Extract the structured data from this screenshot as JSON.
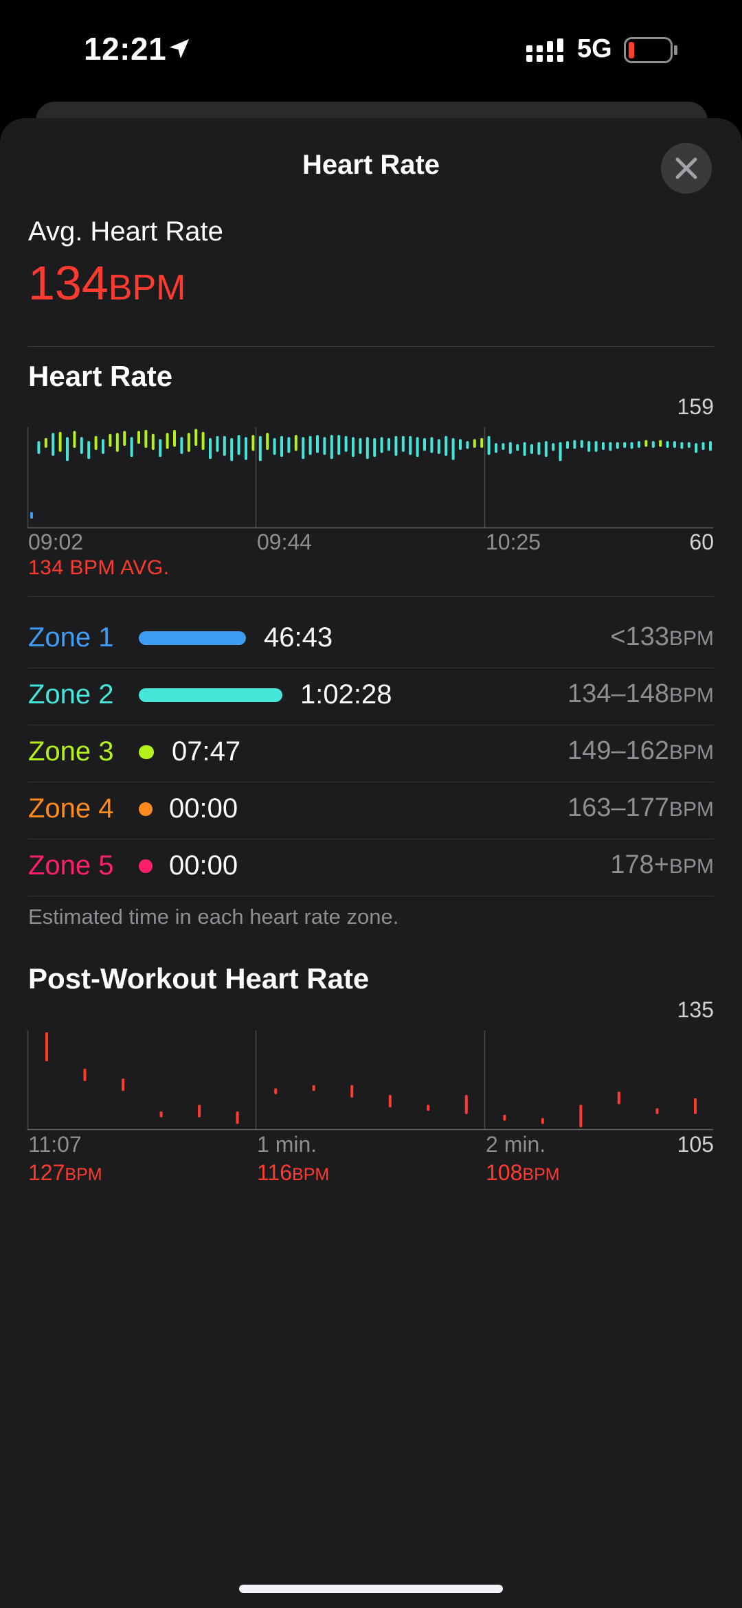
{
  "status": {
    "time": "12:21",
    "network": "5G",
    "icons": [
      "location-arrow-icon",
      "signal-bars-icon",
      "battery-low-icon"
    ],
    "battery_color": "#ff3b30"
  },
  "sheet": {
    "title": "Heart Rate",
    "close_icon": "close-icon"
  },
  "summary": {
    "label": "Avg. Heart Rate",
    "value": "134",
    "unit": "BPM",
    "color": "#ff3b30"
  },
  "heart_rate": {
    "title": "Heart Rate",
    "y_max_label": "159",
    "y_min_label": "60",
    "x_labels": [
      "09:02",
      "09:44",
      "10:25"
    ],
    "avg_caption": "134 BPM AVG."
  },
  "zones": [
    {
      "name": "Zone 1",
      "time": "46:43",
      "range": "<133",
      "unit": "BPM",
      "color": "#3f9cf4",
      "bar_fraction": 0.65
    },
    {
      "name": "Zone 2",
      "time": "1:02:28",
      "range": "134–148",
      "unit": "BPM",
      "color": "#45e5da",
      "bar_fraction": 0.87
    },
    {
      "name": "Zone 3",
      "time": "07:47",
      "range": "149–162",
      "unit": "BPM",
      "color": "#b4f11a",
      "bar_fraction": 0.09
    },
    {
      "name": "Zone 4",
      "time": "00:00",
      "range": "163–177",
      "unit": "BPM",
      "color": "#ff8a1e",
      "bar_fraction": 0
    },
    {
      "name": "Zone 5",
      "time": "00:00",
      "range": "178+",
      "unit": "BPM",
      "color": "#ff1f6b",
      "bar_fraction": 0
    }
  ],
  "zones_footnote": "Estimated time in each heart rate zone.",
  "post_workout": {
    "title": "Post-Workout Heart Rate",
    "y_max_label": "135",
    "y_min_label": "105",
    "columns": [
      {
        "label": "11:07",
        "bpm": "127",
        "unit": "BPM"
      },
      {
        "label": "1 min.",
        "bpm": "116",
        "unit": "BPM"
      },
      {
        "label": "2 min.",
        "bpm": "108",
        "unit": "BPM"
      }
    ]
  },
  "chart_data": [
    {
      "type": "bar",
      "title": "Heart Rate",
      "ylim": [
        60,
        159
      ],
      "x_tick_labels": [
        "09:02",
        "09:44",
        "10:25"
      ],
      "average": 134,
      "values": [
        [
          70,
          74
        ],
        [
          134,
          144
        ],
        [
          140,
          147
        ],
        [
          132,
          152
        ],
        [
          136,
          153
        ],
        [
          127,
          148
        ],
        [
          140,
          154
        ],
        [
          134,
          148
        ],
        [
          129,
          144
        ],
        [
          138,
          149
        ],
        [
          134,
          146
        ],
        [
          141,
          151
        ],
        [
          136,
          152
        ],
        [
          142,
          154
        ],
        [
          131,
          148
        ],
        [
          144,
          154
        ],
        [
          140,
          155
        ],
        [
          138,
          151
        ],
        [
          131,
          146
        ],
        [
          139,
          152
        ],
        [
          141,
          155
        ],
        [
          134,
          148
        ],
        [
          136,
          152
        ],
        [
          142,
          156
        ],
        [
          138,
          153
        ],
        [
          129,
          147
        ],
        [
          136,
          149
        ],
        [
          132,
          149
        ],
        [
          127,
          147
        ],
        [
          133,
          150
        ],
        [
          128,
          148
        ],
        [
          137,
          150
        ],
        [
          127,
          149
        ],
        [
          138,
          152
        ],
        [
          133,
          147
        ],
        [
          131,
          149
        ],
        [
          135,
          148
        ],
        [
          137,
          150
        ],
        [
          129,
          148
        ],
        [
          133,
          149
        ],
        [
          135,
          150
        ],
        [
          133,
          148
        ],
        [
          129,
          150
        ],
        [
          133,
          150
        ],
        [
          136,
          149
        ],
        [
          131,
          148
        ],
        [
          134,
          147
        ],
        [
          129,
          148
        ],
        [
          131,
          147
        ],
        [
          135,
          148
        ],
        [
          137,
          147
        ],
        [
          132,
          149
        ],
        [
          136,
          149
        ],
        [
          133,
          149
        ],
        [
          131,
          148
        ],
        [
          137,
          147
        ],
        [
          135,
          148
        ],
        [
          134,
          146
        ],
        [
          132,
          149
        ],
        [
          128,
          147
        ],
        [
          138,
          146
        ],
        [
          139,
          144
        ],
        [
          140,
          146
        ],
        [
          140,
          147
        ],
        [
          133,
          149
        ],
        [
          135,
          142
        ],
        [
          138,
          142
        ],
        [
          134,
          143
        ],
        [
          137,
          141
        ],
        [
          132,
          143
        ],
        [
          134,
          141
        ],
        [
          133,
          143
        ],
        [
          131,
          144
        ],
        [
          137,
          142
        ],
        [
          127,
          143
        ],
        [
          139,
          144
        ],
        [
          139,
          145
        ],
        [
          140,
          145
        ],
        [
          136,
          144
        ],
        [
          136,
          144
        ],
        [
          138,
          143
        ],
        [
          137,
          143
        ],
        [
          139,
          143
        ],
        [
          140,
          143
        ],
        [
          139,
          143
        ],
        [
          140,
          144
        ],
        [
          141,
          145
        ],
        [
          140,
          144
        ],
        [
          141,
          145
        ],
        [
          140,
          144
        ],
        [
          140,
          144
        ],
        [
          139,
          143
        ],
        [
          140,
          143
        ],
        [
          135,
          142
        ],
        [
          138,
          143
        ],
        [
          137,
          144
        ]
      ]
    },
    {
      "type": "bar",
      "title": "Post-Workout Heart Rate",
      "ylim": [
        105,
        135
      ],
      "x_tick_labels": [
        "11:07",
        "1 min.",
        "2 min."
      ],
      "values": [
        [
          126,
          134
        ],
        [
          120,
          123
        ],
        [
          117,
          120
        ],
        [
          109,
          110
        ],
        [
          109,
          112
        ],
        [
          107,
          110
        ],
        [
          116,
          117
        ],
        [
          117,
          118
        ],
        [
          115,
          118
        ],
        [
          112,
          115
        ],
        [
          111,
          112
        ],
        [
          110,
          115
        ],
        [
          108,
          109
        ],
        [
          107,
          108
        ],
        [
          106,
          112
        ],
        [
          113,
          116
        ],
        [
          110,
          111
        ],
        [
          110,
          114
        ]
      ]
    }
  ]
}
